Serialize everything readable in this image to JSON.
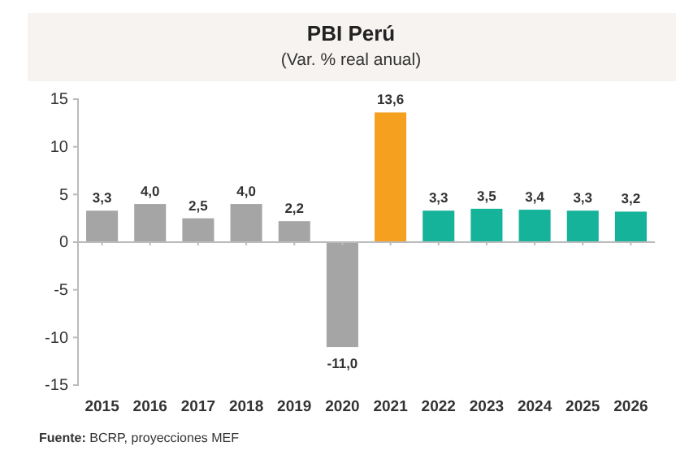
{
  "chart_data": {
    "type": "bar",
    "title": "PBI Perú",
    "subtitle": "(Var. % real anual)",
    "categories": [
      "2015",
      "2016",
      "2017",
      "2018",
      "2019",
      "2020",
      "2021",
      "2022",
      "2023",
      "2024",
      "2025",
      "2026"
    ],
    "values": [
      3.3,
      4.0,
      2.5,
      4.0,
      2.2,
      -11.0,
      13.6,
      3.3,
      3.5,
      3.4,
      3.3,
      3.2
    ],
    "colors": [
      "#a5a5a5",
      "#a5a5a5",
      "#a5a5a5",
      "#a5a5a5",
      "#a5a5a5",
      "#a5a5a5",
      "#f5a01f",
      "#14b39a",
      "#14b39a",
      "#14b39a",
      "#14b39a",
      "#14b39a"
    ],
    "value_labels": [
      "3,3",
      "4,0",
      "2,5",
      "4,0",
      "2,2",
      "-11,0",
      "13,6",
      "3,3",
      "3,5",
      "3,4",
      "3,3",
      "3,2"
    ],
    "ylim": [
      -15,
      15
    ],
    "yticks": [
      -15,
      -10,
      -5,
      0,
      5,
      10,
      15
    ],
    "annotations": [
      "Fuente: BCRP, proyecciones MEF"
    ]
  }
}
